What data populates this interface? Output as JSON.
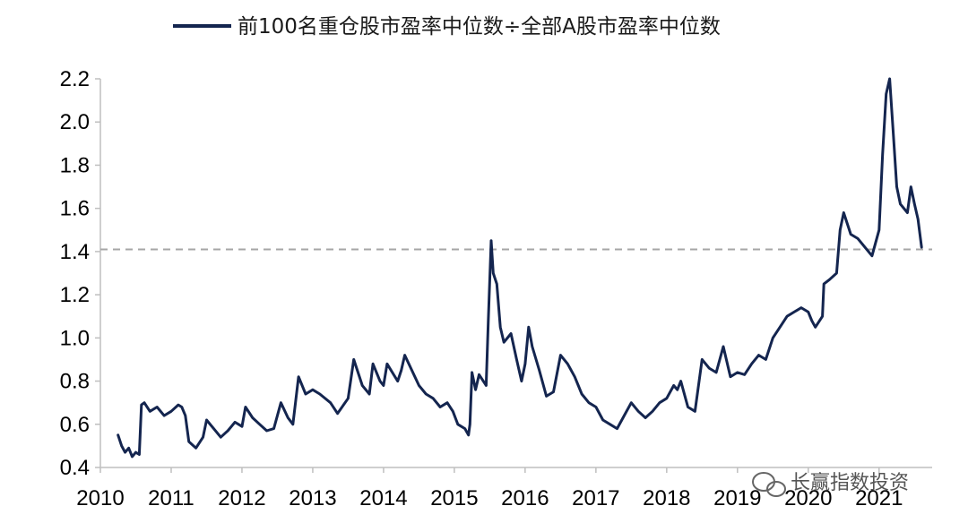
{
  "chart_data": {
    "type": "line",
    "title": "",
    "xlabel": "",
    "ylabel": "",
    "legend": {
      "position": "top-center",
      "entries": [
        "前100名重仓股市盈率中位数÷全部A股市盈率中位数"
      ]
    },
    "series": [
      {
        "name": "前100名重仓股市盈率中位数÷全部A股市盈率中位数",
        "color": "#14254f",
        "points": [
          [
            2010.25,
            0.55
          ],
          [
            2010.3,
            0.5
          ],
          [
            2010.35,
            0.47
          ],
          [
            2010.4,
            0.49
          ],
          [
            2010.45,
            0.45
          ],
          [
            2010.5,
            0.47
          ],
          [
            2010.55,
            0.46
          ],
          [
            2010.58,
            0.69
          ],
          [
            2010.62,
            0.7
          ],
          [
            2010.7,
            0.66
          ],
          [
            2010.8,
            0.68
          ],
          [
            2010.9,
            0.64
          ],
          [
            2011.0,
            0.66
          ],
          [
            2011.1,
            0.69
          ],
          [
            2011.15,
            0.68
          ],
          [
            2011.2,
            0.64
          ],
          [
            2011.25,
            0.52
          ],
          [
            2011.35,
            0.49
          ],
          [
            2011.45,
            0.54
          ],
          [
            2011.5,
            0.62
          ],
          [
            2011.6,
            0.58
          ],
          [
            2011.7,
            0.54
          ],
          [
            2011.8,
            0.57
          ],
          [
            2011.9,
            0.61
          ],
          [
            2012.0,
            0.59
          ],
          [
            2012.05,
            0.68
          ],
          [
            2012.15,
            0.63
          ],
          [
            2012.25,
            0.6
          ],
          [
            2012.35,
            0.57
          ],
          [
            2012.45,
            0.58
          ],
          [
            2012.55,
            0.7
          ],
          [
            2012.65,
            0.63
          ],
          [
            2012.72,
            0.6
          ],
          [
            2012.8,
            0.82
          ],
          [
            2012.9,
            0.74
          ],
          [
            2013.0,
            0.76
          ],
          [
            2013.1,
            0.74
          ],
          [
            2013.25,
            0.7
          ],
          [
            2013.35,
            0.65
          ],
          [
            2013.5,
            0.72
          ],
          [
            2013.58,
            0.9
          ],
          [
            2013.7,
            0.78
          ],
          [
            2013.8,
            0.74
          ],
          [
            2013.85,
            0.88
          ],
          [
            2013.95,
            0.8
          ],
          [
            2014.0,
            0.78
          ],
          [
            2014.05,
            0.88
          ],
          [
            2014.2,
            0.8
          ],
          [
            2014.25,
            0.85
          ],
          [
            2014.3,
            0.92
          ],
          [
            2014.4,
            0.85
          ],
          [
            2014.5,
            0.78
          ],
          [
            2014.6,
            0.74
          ],
          [
            2014.7,
            0.72
          ],
          [
            2014.8,
            0.68
          ],
          [
            2014.9,
            0.7
          ],
          [
            2014.98,
            0.66
          ],
          [
            2015.05,
            0.6
          ],
          [
            2015.15,
            0.58
          ],
          [
            2015.2,
            0.55
          ],
          [
            2015.22,
            0.6
          ],
          [
            2015.25,
            0.84
          ],
          [
            2015.3,
            0.76
          ],
          [
            2015.35,
            0.83
          ],
          [
            2015.45,
            0.78
          ],
          [
            2015.48,
            1.08
          ],
          [
            2015.52,
            1.45
          ],
          [
            2015.55,
            1.3
          ],
          [
            2015.6,
            1.25
          ],
          [
            2015.65,
            1.05
          ],
          [
            2015.7,
            0.98
          ],
          [
            2015.8,
            1.02
          ],
          [
            2015.88,
            0.9
          ],
          [
            2015.95,
            0.8
          ],
          [
            2016.0,
            0.88
          ],
          [
            2016.05,
            1.05
          ],
          [
            2016.1,
            0.96
          ],
          [
            2016.2,
            0.85
          ],
          [
            2016.3,
            0.73
          ],
          [
            2016.4,
            0.75
          ],
          [
            2016.5,
            0.92
          ],
          [
            2016.6,
            0.88
          ],
          [
            2016.7,
            0.82
          ],
          [
            2016.8,
            0.74
          ],
          [
            2016.9,
            0.7
          ],
          [
            2017.0,
            0.68
          ],
          [
            2017.1,
            0.62
          ],
          [
            2017.2,
            0.6
          ],
          [
            2017.3,
            0.58
          ],
          [
            2017.4,
            0.64
          ],
          [
            2017.5,
            0.7
          ],
          [
            2017.6,
            0.66
          ],
          [
            2017.7,
            0.63
          ],
          [
            2017.8,
            0.66
          ],
          [
            2017.9,
            0.7
          ],
          [
            2018.0,
            0.72
          ],
          [
            2018.1,
            0.78
          ],
          [
            2018.15,
            0.76
          ],
          [
            2018.2,
            0.8
          ],
          [
            2018.3,
            0.68
          ],
          [
            2018.4,
            0.66
          ],
          [
            2018.5,
            0.9
          ],
          [
            2018.6,
            0.86
          ],
          [
            2018.7,
            0.84
          ],
          [
            2018.8,
            0.96
          ],
          [
            2018.9,
            0.82
          ],
          [
            2019.0,
            0.84
          ],
          [
            2019.1,
            0.83
          ],
          [
            2019.2,
            0.88
          ],
          [
            2019.3,
            0.92
          ],
          [
            2019.4,
            0.9
          ],
          [
            2019.5,
            1.0
          ],
          [
            2019.6,
            1.05
          ],
          [
            2019.7,
            1.1
          ],
          [
            2019.8,
            1.12
          ],
          [
            2019.9,
            1.14
          ],
          [
            2020.0,
            1.12
          ],
          [
            2020.05,
            1.08
          ],
          [
            2020.1,
            1.05
          ],
          [
            2020.2,
            1.1
          ],
          [
            2020.22,
            1.25
          ],
          [
            2020.3,
            1.27
          ],
          [
            2020.4,
            1.3
          ],
          [
            2020.45,
            1.5
          ],
          [
            2020.5,
            1.58
          ],
          [
            2020.6,
            1.48
          ],
          [
            2020.7,
            1.46
          ],
          [
            2020.8,
            1.42
          ],
          [
            2020.9,
            1.38
          ],
          [
            2021.0,
            1.5
          ],
          [
            2021.05,
            1.85
          ],
          [
            2021.1,
            2.13
          ],
          [
            2021.15,
            2.2
          ],
          [
            2021.2,
            1.95
          ],
          [
            2021.25,
            1.7
          ],
          [
            2021.3,
            1.62
          ],
          [
            2021.4,
            1.58
          ],
          [
            2021.45,
            1.7
          ],
          [
            2021.5,
            1.62
          ],
          [
            2021.55,
            1.55
          ],
          [
            2021.6,
            1.42
          ]
        ]
      }
    ],
    "reference_line": {
      "y": 1.41,
      "style": "dashed",
      "color": "#a6a6a6"
    },
    "x_ticks": [
      "2010",
      "2011",
      "2012",
      "2013",
      "2014",
      "2015",
      "2016",
      "2017",
      "2018",
      "2019",
      "2020",
      "2021"
    ],
    "y_ticks": [
      "0.4",
      "0.6",
      "0.8",
      "1.0",
      "1.2",
      "1.4",
      "1.6",
      "1.8",
      "2.0",
      "2.2"
    ],
    "xlim": [
      2010,
      2021.75
    ],
    "ylim": [
      0.4,
      2.2
    ],
    "grid": false,
    "watermark": "长赢指数投资"
  }
}
